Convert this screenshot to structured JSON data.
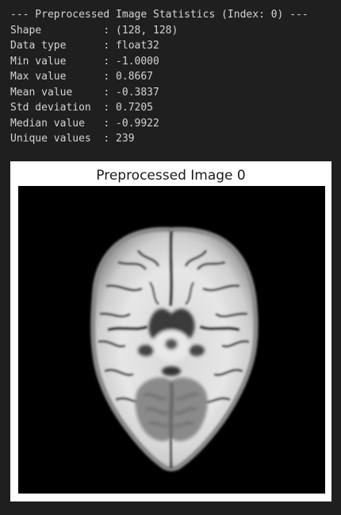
{
  "output": {
    "header": "--- Preprocessed Image Statistics (Index: 0) ---",
    "lines": [
      "Shape          : (128, 128)",
      "Data type      : float32",
      "Min value      : -1.0000",
      "Max value      : 0.8667",
      "Mean value     : -0.3837",
      "Std deviation  : 0.7205",
      "Median value   : -0.9922",
      "Unique values  : 239"
    ]
  },
  "figure": {
    "title": "Preprocessed Image 0",
    "image_description_icon": "brain-mri-axial-slice"
  }
}
